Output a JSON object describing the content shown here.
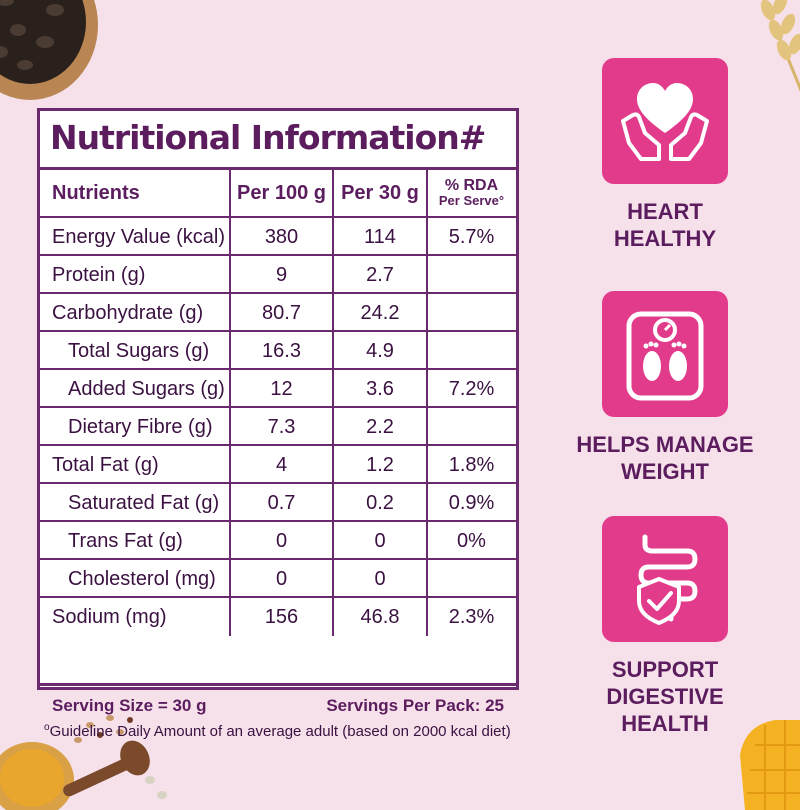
{
  "table": {
    "title": "Nutritional Information#",
    "headers": [
      "Nutrients",
      "Per 100 g",
      "Per 30 g",
      "% RDA",
      "Per Serve°"
    ],
    "rows": [
      {
        "nutrient": "Energy Value (kcal)",
        "per100": "380",
        "per30": "114",
        "rda": "5.7%",
        "indent": false
      },
      {
        "nutrient": "Protein (g)",
        "per100": "9",
        "per30": "2.7",
        "rda": "",
        "indent": false
      },
      {
        "nutrient": "Carbohydrate (g)",
        "per100": "80.7",
        "per30": "24.2",
        "rda": "",
        "indent": false
      },
      {
        "nutrient": "Total Sugars (g)",
        "per100": "16.3",
        "per30": "4.9",
        "rda": "",
        "indent": true
      },
      {
        "nutrient": "Added Sugars (g)",
        "per100": "12",
        "per30": "3.6",
        "rda": "7.2%",
        "indent": true
      },
      {
        "nutrient": "Dietary Fibre (g)",
        "per100": "7.3",
        "per30": "2.2",
        "rda": "",
        "indent": true
      },
      {
        "nutrient": "Total Fat (g)",
        "per100": "4",
        "per30": "1.2",
        "rda": "1.8%",
        "indent": false
      },
      {
        "nutrient": "Saturated Fat (g)",
        "per100": "0.7",
        "per30": "0.2",
        "rda": "0.9%",
        "indent": true
      },
      {
        "nutrient": "Trans Fat (g)",
        "per100": "0",
        "per30": "0",
        "rda": "0%",
        "indent": true
      },
      {
        "nutrient": "Cholesterol (mg)",
        "per100": "0",
        "per30": "0",
        "rda": "",
        "indent": true
      },
      {
        "nutrient": "Sodium (mg)",
        "per100": "156",
        "per30": "46.8",
        "rda": "2.3%",
        "indent": false
      }
    ],
    "serving_size": "Serving Size = 30 g",
    "servings_per_pack": "Servings Per Pack: 25",
    "footnote_mark": "o",
    "footnote": "Guideline Daily Amount of an average adult (based on 2000 kcal diet)"
  },
  "features": [
    {
      "line1": "HEART",
      "line2": "HEALTHY",
      "icon": "heart-hands-icon"
    },
    {
      "line1": "HELPS MANAGE",
      "line2": "WEIGHT",
      "icon": "weighing-scale-icon"
    },
    {
      "line1": "SUPPORT",
      "line2": "DIGESTIVE HEALTH",
      "icon": "digestive-shield-icon"
    }
  ],
  "colors": {
    "accent": "#e23b8c",
    "text": "#5b1d5e",
    "background": "#f6e1ea"
  }
}
